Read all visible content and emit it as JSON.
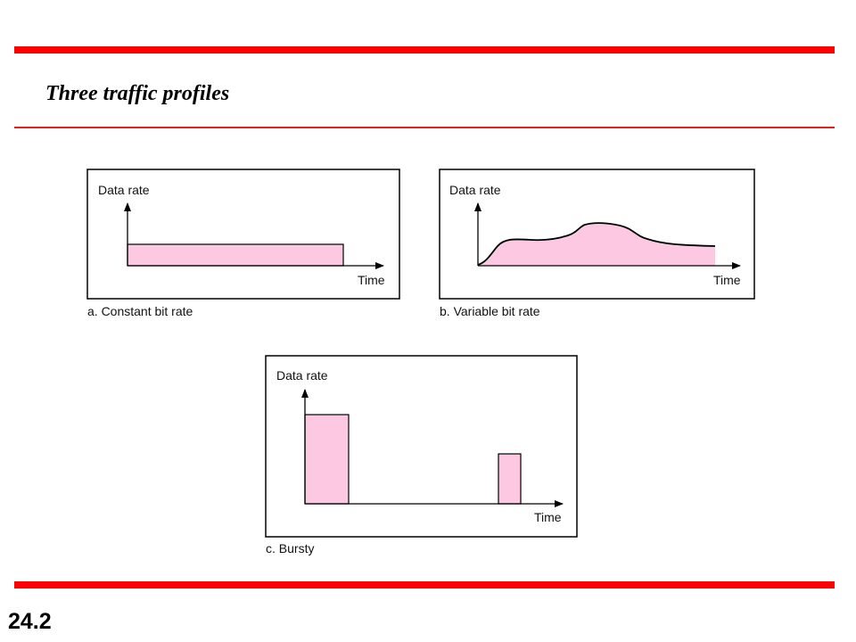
{
  "slide": {
    "title": "Three traffic profiles",
    "number": "24.2"
  },
  "colors": {
    "accent_rule": "#ff0000",
    "area_fill": "#fcc8e2"
  },
  "panels": [
    {
      "id": "a",
      "profile": "constant",
      "y_axis_label": "Data rate",
      "x_axis_label": "Time",
      "caption": "a. Constant bit rate"
    },
    {
      "id": "b",
      "profile": "variable",
      "y_axis_label": "Data rate",
      "x_axis_label": "Time",
      "caption": "b. Variable bit rate"
    },
    {
      "id": "c",
      "profile": "bursty",
      "y_axis_label": "Data rate",
      "x_axis_label": "Time",
      "caption": "c. Bursty"
    }
  ]
}
